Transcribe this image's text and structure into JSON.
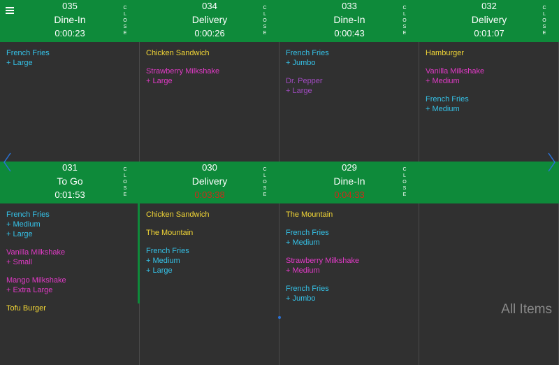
{
  "colors": {
    "header_green": "#0e8a3a",
    "late": "#cc2a1a",
    "cyan": "#35c2e8",
    "yellow": "#f3d736",
    "magenta": "#e23ac7",
    "background": "#303030"
  },
  "close_label": "CLOSE",
  "footer": {
    "all_items": "All Items"
  },
  "icons": {
    "menu": "hamburger-menu-icon",
    "prev": "chevron-left-icon",
    "next": "chevron-right-icon"
  },
  "rows": [
    {
      "orders": [
        {
          "number": "035",
          "type": "Dine-In",
          "time": "0:00:23",
          "late": false,
          "items": [
            {
              "name": "French Fries",
              "mods": "+ Large",
              "color": "cyan"
            }
          ]
        },
        {
          "number": "034",
          "type": "Delivery",
          "time": "0:00:26",
          "late": false,
          "items": [
            {
              "name": "Chicken Sandwich",
              "mods": "",
              "color": "yellow"
            },
            {
              "name": "Strawberry Milkshake",
              "mods": "+ Large",
              "color": "magenta"
            }
          ]
        },
        {
          "number": "033",
          "type": "Dine-In",
          "time": "0:00:43",
          "late": false,
          "items": [
            {
              "name": "French Fries",
              "mods": "+ Jumbo",
              "color": "cyan"
            },
            {
              "name": "Dr. Pepper",
              "mods": "+ Large",
              "color": "purple"
            }
          ]
        },
        {
          "number": "032",
          "type": "Delivery",
          "time": "0:01:07",
          "late": false,
          "items": [
            {
              "name": "Hamburger",
              "mods": "",
              "color": "yellow"
            },
            {
              "name": "Vanilla Milkshake",
              "mods": "+ Medium",
              "color": "magenta"
            },
            {
              "name": "French Fries",
              "mods": "+ Medium",
              "color": "cyan"
            }
          ]
        }
      ]
    },
    {
      "orders": [
        {
          "number": "031",
          "type": "To Go",
          "time": "0:01:53",
          "late": false,
          "items": [
            {
              "name": "French Fries",
              "mods": "+ Medium\n+ Large",
              "color": "cyan"
            },
            {
              "name": "Vanilla Milkshake",
              "mods": "+ Small",
              "color": "magenta"
            },
            {
              "name": "Mango Milkshake",
              "mods": "+ Extra Large",
              "color": "magenta"
            },
            {
              "name": "Tofu Burger",
              "mods": "",
              "color": "yellow"
            }
          ]
        },
        {
          "number": "030",
          "type": "Delivery",
          "time": "0:03:38",
          "late": true,
          "items": [
            {
              "name": "Chicken Sandwich",
              "mods": "",
              "color": "yellow"
            },
            {
              "name": "The Mountain",
              "mods": "",
              "color": "yellow"
            },
            {
              "name": "French Fries",
              "mods": "+ Medium\n+ Large",
              "color": "cyan"
            }
          ]
        },
        {
          "number": "029",
          "type": "Dine-In",
          "time": "0:04:33",
          "late": true,
          "items": [
            {
              "name": "The Mountain",
              "mods": "",
              "color": "yellow"
            },
            {
              "name": "French Fries",
              "mods": "+ Medium",
              "color": "cyan"
            },
            {
              "name": "Strawberry Milkshake",
              "mods": "+ Medium",
              "color": "magenta"
            },
            {
              "name": "French Fries",
              "mods": "+ Jumbo",
              "color": "cyan"
            }
          ]
        }
      ]
    }
  ]
}
